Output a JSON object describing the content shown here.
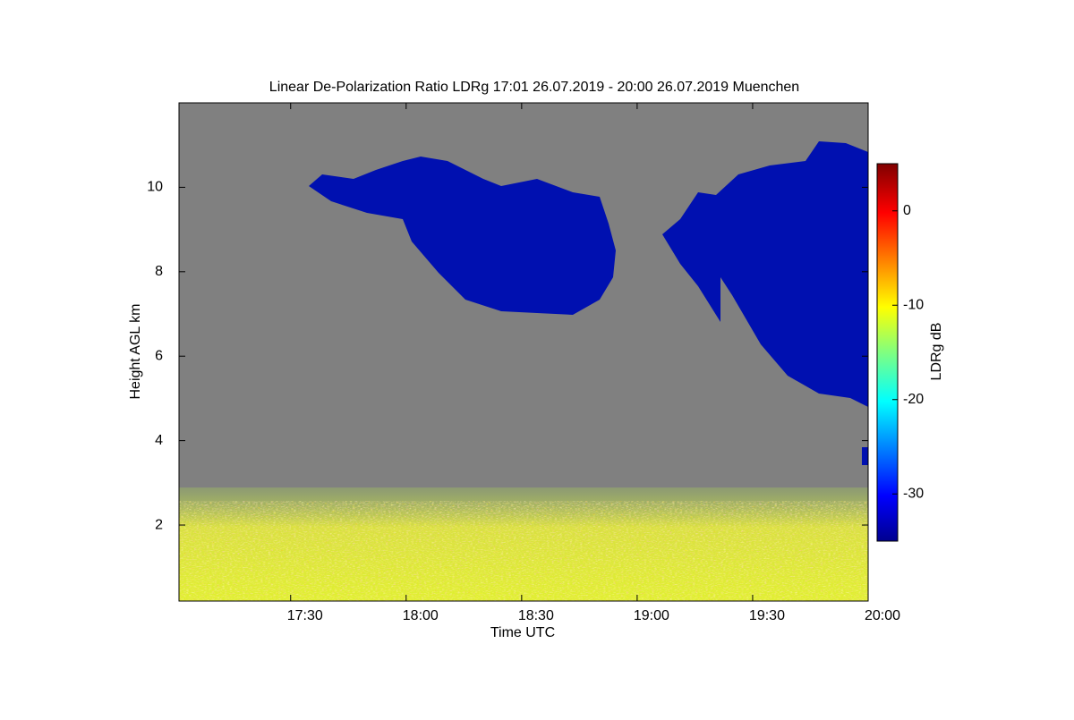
{
  "chart_data": {
    "type": "heatmap",
    "title": "Linear De-Polarization Ratio LDRg   17:01 26.07.2019 - 20:00 26.07.2019 Muenchen",
    "xlabel": "Time UTC",
    "ylabel": "Height AGL km",
    "colorbar_label": "LDRg dB",
    "xlim": [
      17.0167,
      20
    ],
    "xticks": [
      {
        "value": 17.5,
        "label": "17:30"
      },
      {
        "value": 18,
        "label": "18:00"
      },
      {
        "value": 18.5,
        "label": "18:30"
      },
      {
        "value": 19,
        "label": "19:00"
      },
      {
        "value": 19.5,
        "label": "19:30"
      },
      {
        "value": 20,
        "label": "20:00"
      }
    ],
    "ylim": [
      0.2,
      12
    ],
    "yticks": [
      2,
      4,
      6,
      8,
      10
    ],
    "clim": [
      -35,
      5
    ],
    "cticks": [
      0,
      -10,
      -20,
      -30
    ],
    "colormap": "jet"
  }
}
